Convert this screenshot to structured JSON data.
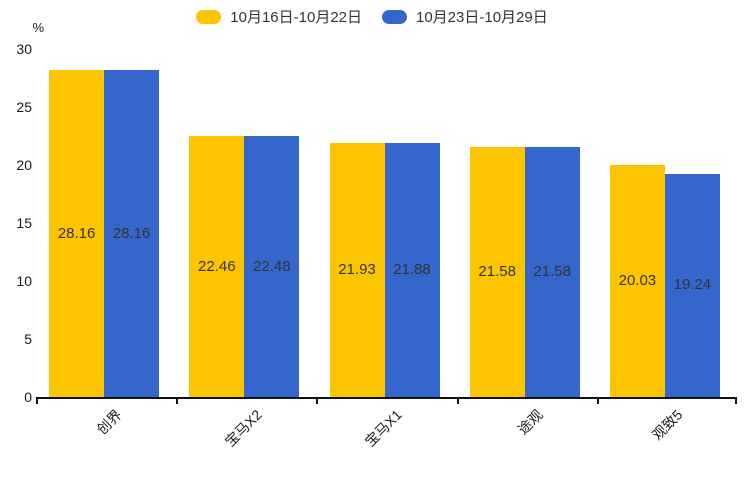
{
  "chart_data": {
    "type": "bar",
    "title": "",
    "ylabel": "%",
    "xlabel": "",
    "ylim": [
      0,
      30
    ],
    "yticks": [
      0,
      5,
      10,
      15,
      20,
      25,
      30
    ],
    "grid": false,
    "legend_position": "top",
    "value_labels": true,
    "categories": [
      "创界",
      "宝马X2",
      "宝马X1",
      "途观",
      "观致5"
    ],
    "series": [
      {
        "name": "10月16日-10月22日",
        "color": "#FDC500",
        "values": [
          28.16,
          22.46,
          21.93,
          21.58,
          20.03
        ]
      },
      {
        "name": "10月23日-10月29日",
        "color": "#3466CB",
        "values": [
          28.16,
          22.48,
          21.88,
          21.58,
          19.24
        ]
      }
    ],
    "colors": {
      "axis_line": "#111111",
      "tick_text": "#1a1a1a",
      "value_label_text": "#333333",
      "background": "#ffffff"
    }
  }
}
